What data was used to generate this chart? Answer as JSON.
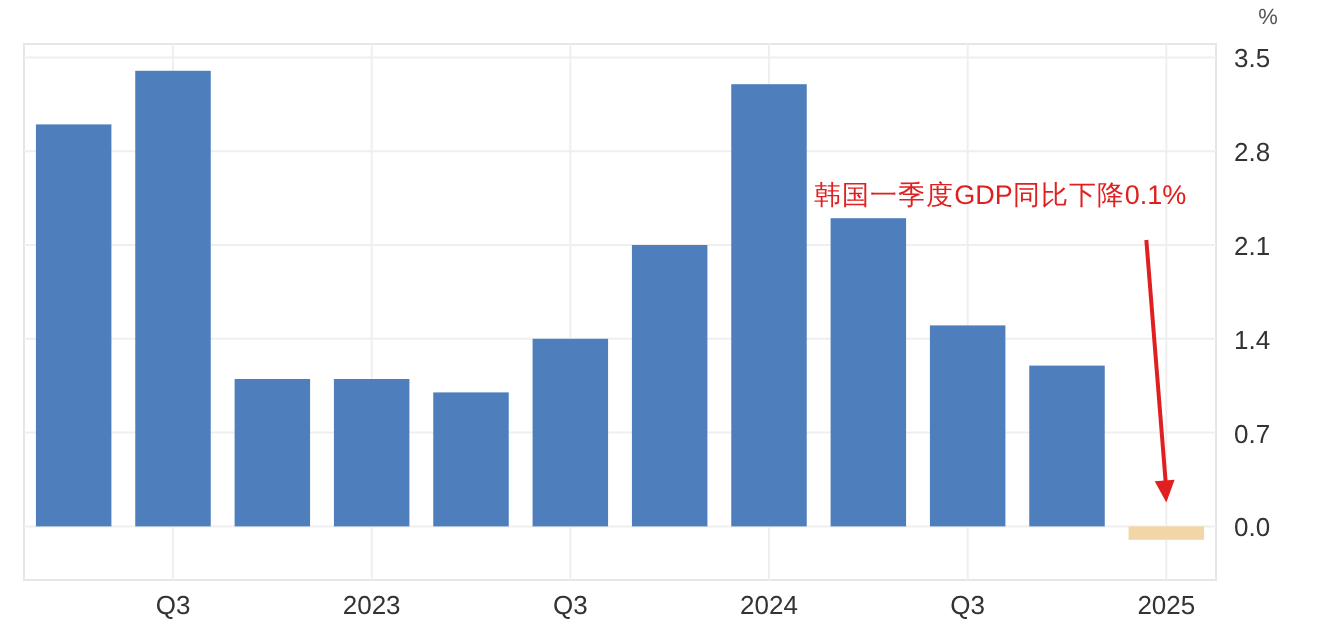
{
  "chart_data": {
    "type": "bar",
    "categories": [
      null,
      "Q3",
      null,
      "2023",
      null,
      "Q3",
      null,
      "2024",
      null,
      "Q3",
      null,
      "2025"
    ],
    "values": [
      3.0,
      3.4,
      1.1,
      1.1,
      1.0,
      1.4,
      2.1,
      3.3,
      2.3,
      1.5,
      1.2,
      -0.1
    ],
    "colors": [
      "#4e7fbc",
      "#4e7fbc",
      "#4e7fbc",
      "#4e7fbc",
      "#4e7fbc",
      "#4e7fbc",
      "#4e7fbc",
      "#4e7fbc",
      "#4e7fbc",
      "#4e7fbc",
      "#4e7fbc",
      "#f3d6a6"
    ],
    "ylabel": "%",
    "ylim": [
      -0.4,
      3.6
    ],
    "yticks": [
      {
        "value": 0,
        "label": "0.0"
      },
      0.7,
      1.4,
      2.1,
      2.8,
      3.5
    ],
    "grid": true,
    "annotations": [
      "韩国一季度GDP同比下降0.1%"
    ]
  }
}
